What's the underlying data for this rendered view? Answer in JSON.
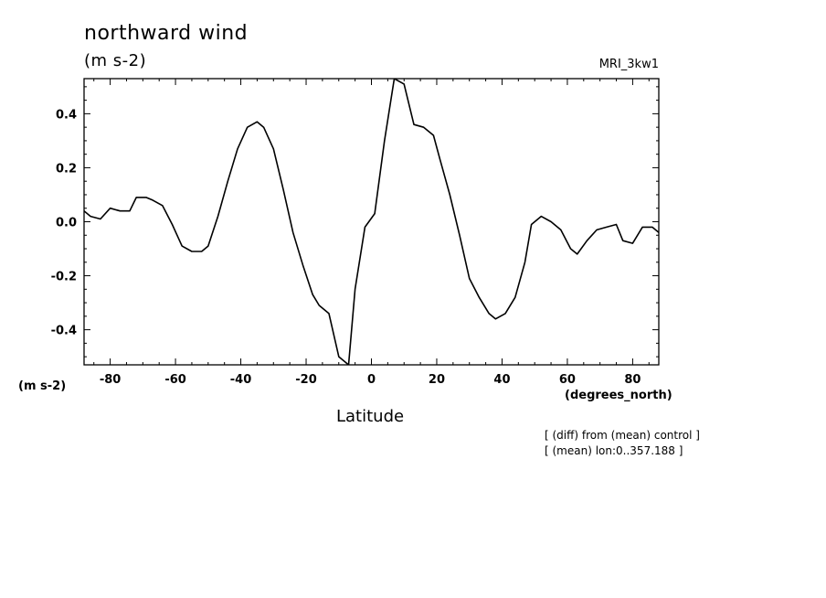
{
  "chart_data": {
    "type": "line",
    "title": "northward wind",
    "units_label": "(m s-2)",
    "model": "MRI_3kw1",
    "ylabel": "(m s-2)",
    "xunits": "(degrees_north)",
    "xlabel": "Latitude",
    "notes": [
      "[ (diff) from (mean) control ]",
      "[ (mean) lon:0..357.188 ]"
    ],
    "xlim": [
      -88,
      88
    ],
    "ylim": [
      -0.53,
      0.53
    ],
    "xticks": [
      -80,
      -60,
      -40,
      -20,
      0,
      20,
      40,
      60,
      80
    ],
    "xtick_labels": [
      "-80",
      "-60",
      "-40",
      "-20",
      "0",
      "20",
      "40",
      "60",
      "80"
    ],
    "yticks": [
      -0.4,
      -0.2,
      0.0,
      0.2,
      0.4
    ],
    "ytick_labels": [
      "-0.4",
      "-0.2",
      "0.0",
      "0.2",
      "0.4"
    ],
    "grid": false,
    "color": "#000000",
    "x": [
      -88,
      -86,
      -83,
      -80,
      -77,
      -74,
      -72,
      -69,
      -67,
      -64,
      -61,
      -58,
      -55,
      -52,
      -50,
      -47,
      -44,
      -41,
      -38,
      -35,
      -33,
      -30,
      -27,
      -24,
      -21,
      -18,
      -16,
      -13,
      -10,
      -7,
      -5,
      -2,
      1,
      4,
      7,
      10,
      13,
      16,
      19,
      21,
      24,
      27,
      30,
      33,
      36,
      38,
      41,
      44,
      47,
      49,
      52,
      55,
      58,
      61,
      63,
      66,
      69,
      72,
      75,
      77,
      80,
      83,
      86,
      88
    ],
    "y": [
      0.04,
      0.02,
      0.01,
      0.05,
      0.04,
      0.04,
      0.09,
      0.09,
      0.08,
      0.06,
      -0.01,
      -0.09,
      -0.11,
      -0.11,
      -0.09,
      0.02,
      0.15,
      0.27,
      0.35,
      0.37,
      0.35,
      0.27,
      0.12,
      -0.04,
      -0.16,
      -0.27,
      -0.31,
      -0.34,
      -0.5,
      -0.53,
      -0.25,
      -0.02,
      0.03,
      0.3,
      0.53,
      0.51,
      0.36,
      0.35,
      0.32,
      0.23,
      0.1,
      -0.05,
      -0.21,
      -0.28,
      -0.34,
      -0.36,
      -0.34,
      -0.28,
      -0.15,
      -0.01,
      0.02,
      0.0,
      -0.03,
      -0.1,
      -0.12,
      -0.07,
      -0.03,
      -0.02,
      -0.01,
      -0.07,
      -0.08,
      -0.02,
      -0.02,
      -0.04
    ]
  }
}
